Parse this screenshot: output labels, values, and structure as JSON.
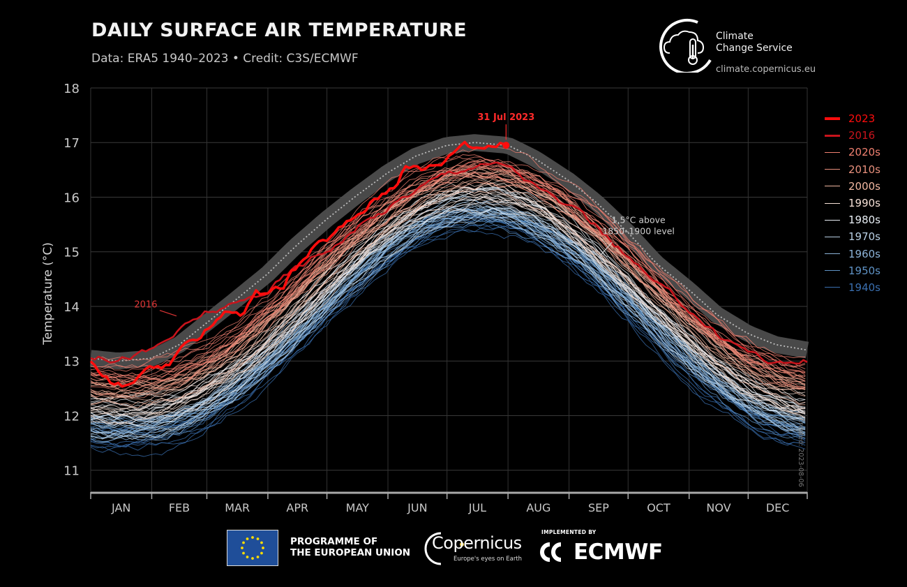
{
  "header": {
    "title": "DAILY SURFACE AIR TEMPERATURE",
    "subtitle": "Data: ERA5 1940–2023 • Credit: C3S/ECMWF"
  },
  "brand": {
    "service_name_line1": "Climate",
    "service_name_line2": "Change Service",
    "url": "climate.copernicus.eu",
    "icon": "thermometer-cloud-icon"
  },
  "footer": {
    "eu_line1": "PROGRAMME OF",
    "eu_line2": "THE EUROPEAN UNION",
    "copernicus_word": "Copernicus",
    "copernicus_tagline": "Europe's eyes on Earth",
    "implemented_by": "IMPLEMENTED BY",
    "ecmwf": "ECMWF"
  },
  "created": "created: 2023-08-06",
  "chart_data": {
    "type": "line",
    "ylabel": "Temperature (°C)",
    "ylim": [
      10.6,
      18
    ],
    "yticks": [
      11,
      12,
      13,
      14,
      15,
      16,
      17,
      18
    ],
    "months": [
      "JAN",
      "FEB",
      "MAR",
      "APR",
      "MAY",
      "JUN",
      "JUL",
      "AUG",
      "SEP",
      "OCT",
      "NOV",
      "DEC"
    ],
    "month_days": [
      31,
      28,
      31,
      30,
      31,
      30,
      31,
      31,
      30,
      31,
      30,
      31
    ],
    "grid": true,
    "legend_position": "right",
    "legend": [
      {
        "label": "2023",
        "color": "#ff0d0d",
        "width": 4
      },
      {
        "label": "2016",
        "color": "#c8141c",
        "width": 3
      },
      {
        "label": "2020s",
        "color": "#f08070",
        "width": 1
      },
      {
        "label": "2010s",
        "color": "#e8907c",
        "width": 1
      },
      {
        "label": "2000s",
        "color": "#f2b7a0",
        "width": 1
      },
      {
        "label": "1990s",
        "color": "#f5e0d6",
        "width": 1
      },
      {
        "label": "1980s",
        "color": "#e8eef4",
        "width": 1
      },
      {
        "label": "1970s",
        "color": "#b8cfe4",
        "width": 1
      },
      {
        "label": "1960s",
        "color": "#8cb3d8",
        "width": 1
      },
      {
        "label": "1950s",
        "color": "#5f93c6",
        "width": 1
      },
      {
        "label": "1940s",
        "color": "#3a6fb0",
        "width": 1
      }
    ],
    "series_2023": {
      "name": "2023",
      "color": "#ff0d0d",
      "x_dates": [
        "01 Jan",
        "08 Jan",
        "15 Jan",
        "22 Jan",
        "29 Jan",
        "05 Feb",
        "12 Feb",
        "19 Feb",
        "26 Feb",
        "05 Mar",
        "12 Mar",
        "19 Mar",
        "26 Mar",
        "02 Apr",
        "09 Apr",
        "16 Apr",
        "23 Apr",
        "30 Apr",
        "07 May",
        "14 May",
        "21 May",
        "28 May",
        "04 Jun",
        "11 Jun",
        "18 Jun",
        "25 Jun",
        "02 Jul",
        "09 Jul",
        "16 Jul",
        "23 Jul",
        "31 Jul"
      ],
      "y": [
        12.95,
        12.7,
        12.55,
        12.6,
        12.75,
        12.85,
        13.0,
        13.25,
        13.5,
        13.8,
        13.95,
        13.9,
        14.2,
        14.25,
        14.35,
        14.75,
        15.0,
        15.2,
        15.4,
        15.6,
        15.85,
        16.05,
        16.25,
        16.6,
        16.5,
        16.6,
        16.75,
        17.05,
        16.95,
        17.0,
        16.95
      ]
    },
    "series_2016": {
      "name": "2016",
      "color": "#c8141c",
      "x_dates": [
        "01 Jan",
        "15 Jan",
        "01 Feb",
        "15 Feb",
        "01 Mar",
        "15 Mar",
        "01 Apr",
        "15 Apr",
        "01 May",
        "15 May",
        "01 Jun",
        "15 Jun",
        "01 Jul",
        "15 Jul",
        "01 Aug",
        "15 Aug",
        "01 Sep",
        "15 Sep",
        "01 Oct",
        "15 Oct",
        "01 Nov",
        "15 Nov",
        "01 Dec",
        "15 Dec",
        "31 Dec"
      ],
      "y": [
        13.1,
        13.05,
        13.2,
        13.55,
        13.9,
        14.0,
        14.3,
        14.7,
        15.05,
        15.4,
        15.8,
        16.15,
        16.45,
        16.6,
        16.6,
        16.2,
        15.8,
        15.45,
        14.9,
        14.4,
        13.95,
        13.5,
        13.2,
        12.95,
        13.0
      ]
    },
    "threshold_1p5": {
      "label": "1.5°C above 1850–1900 level",
      "x_dates": [
        "01 Jan",
        "15 Jan",
        "01 Feb",
        "15 Feb",
        "01 Mar",
        "15 Mar",
        "01 Apr",
        "15 Apr",
        "01 May",
        "15 May",
        "01 Jun",
        "15 Jun",
        "01 Jul",
        "15 Jul",
        "01 Aug",
        "15 Aug",
        "01 Sep",
        "15 Sep",
        "01 Oct",
        "15 Oct",
        "01 Nov",
        "15 Nov",
        "01 Dec",
        "15 Dec",
        "31 Dec"
      ],
      "y": [
        13.05,
        13.0,
        13.05,
        13.3,
        13.7,
        14.1,
        14.6,
        15.1,
        15.6,
        16.0,
        16.45,
        16.75,
        16.95,
        17.0,
        16.95,
        16.7,
        16.3,
        15.9,
        15.35,
        14.8,
        14.3,
        13.85,
        13.5,
        13.3,
        13.2
      ]
    },
    "annotations": [
      {
        "text": "31 Jul 2023",
        "x_date": "31 Jul",
        "y": 16.95
      },
      {
        "text": "2016",
        "x_date": "15 Feb",
        "y": 13.85
      },
      {
        "text": "1.5°C above",
        "text2": "1850–1900 level",
        "x_date": "15 Sep",
        "y": 15.3
      }
    ],
    "decade_climatology": [
      {
        "decade": "1940s",
        "color": "#3a6fb0",
        "winter_low": 11.6,
        "summer_high": 15.6
      },
      {
        "decade": "1950s",
        "color": "#5f93c6",
        "winter_low": 11.7,
        "summer_high": 15.7
      },
      {
        "decade": "1960s",
        "color": "#8cb3d8",
        "winter_low": 11.75,
        "summer_high": 15.75
      },
      {
        "decade": "1970s",
        "color": "#b8cfe4",
        "winter_low": 11.85,
        "summer_high": 15.85
      },
      {
        "decade": "1980s",
        "color": "#e8eef4",
        "winter_low": 12.0,
        "summer_high": 16.0
      },
      {
        "decade": "1990s",
        "color": "#f5e0d6",
        "winter_low": 12.15,
        "summer_high": 16.15
      },
      {
        "decade": "2000s",
        "color": "#f2b7a0",
        "winter_low": 12.35,
        "summer_high": 16.3
      },
      {
        "decade": "2010s",
        "color": "#e8907c",
        "winter_low": 12.55,
        "summer_high": 16.45
      },
      {
        "decade": "2020s",
        "color": "#f08070",
        "winter_low": 12.75,
        "summer_high": 16.6
      }
    ]
  }
}
